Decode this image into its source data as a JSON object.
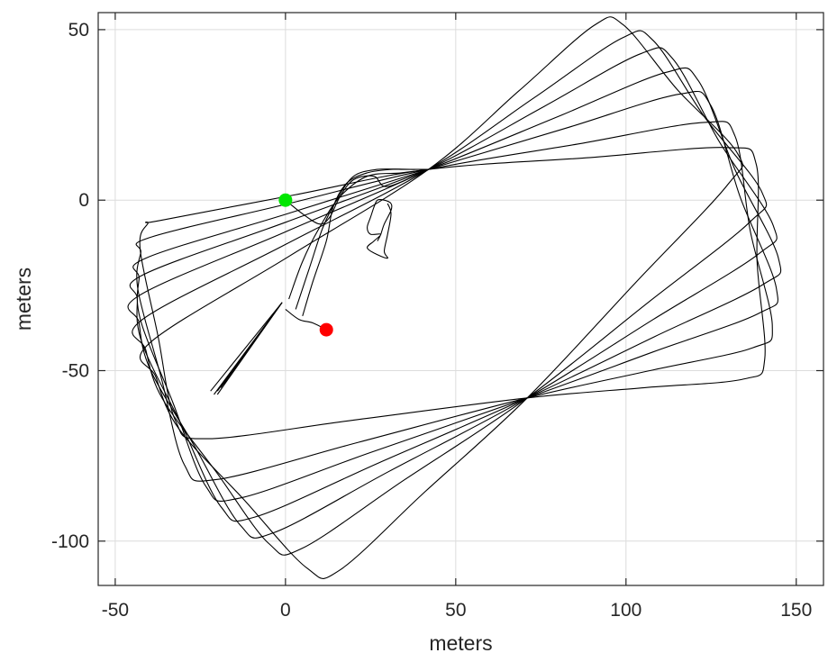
{
  "chart_data": {
    "type": "line",
    "title": "",
    "xlabel": "meters",
    "ylabel": "meters",
    "xlim": [
      -55,
      158
    ],
    "ylim": [
      -113,
      55
    ],
    "xticks": [
      -50,
      0,
      50,
      100,
      150
    ],
    "yticks": [
      50,
      0,
      -50,
      -100
    ],
    "xtick_labels": [
      "-50",
      "0",
      "50",
      "100",
      "150"
    ],
    "ytick_labels": [
      "50",
      "0",
      "-50",
      "-100"
    ],
    "grid": true,
    "line_color": "#000000",
    "pivots": {
      "top": [
        42,
        9
      ],
      "bottom": [
        71,
        -58
      ]
    },
    "loops": [
      {
        "start": [
          -37,
          -6
        ],
        "tr": [
          137,
          16
        ],
        "br": [
          140,
          -52
        ],
        "bl": [
          -31,
          -71
        ],
        "tl": [
          -44,
          -8
        ]
      },
      {
        "start": [
          -40,
          -11
        ],
        "tr": [
          130,
          24
        ],
        "br": [
          143,
          -42
        ],
        "bl": [
          -28,
          -84
        ],
        "tl": [
          -45,
          -20
        ]
      },
      {
        "start": [
          -41,
          -17
        ],
        "tr": [
          122,
          33
        ],
        "br": [
          145,
          -31
        ],
        "bl": [
          -21,
          -90
        ],
        "tl": [
          -45,
          -29
        ]
      },
      {
        "start": [
          -42,
          -22
        ],
        "tr": [
          118,
          40
        ],
        "br": [
          146,
          -22
        ],
        "bl": [
          -16,
          -96
        ],
        "tl": [
          -45,
          -36
        ]
      },
      {
        "start": [
          -43,
          -28
        ],
        "tr": [
          110,
          46
        ],
        "br": [
          145,
          -12
        ],
        "bl": [
          -10,
          -101
        ],
        "tl": [
          -43,
          -44
        ]
      },
      {
        "start": [
          -42,
          -35
        ],
        "tr": [
          104,
          51
        ],
        "br": [
          142,
          -2
        ],
        "bl": [
          -1,
          -106
        ],
        "tl": [
          -40,
          -53
        ]
      },
      {
        "start": [
          -40,
          -42
        ],
        "tr": [
          95,
          55
        ],
        "br": [
          135,
          10
        ],
        "bl": [
          11,
          -113
        ],
        "tl": [
          -36,
          -62
        ]
      }
    ],
    "fan_lines": {
      "apex": [
        -1,
        -30
      ],
      "ends": [
        [
          -22,
          -56
        ],
        [
          -21,
          -57
        ],
        [
          -20,
          -56
        ],
        [
          -19,
          -55
        ],
        [
          -18,
          -54
        ],
        [
          -20,
          -57
        ]
      ]
    },
    "central_segments": [
      {
        "name": "start-tail",
        "points": [
          [
            0,
            0
          ],
          [
            5,
            -4
          ],
          [
            10,
            -7
          ],
          [
            13,
            -5
          ],
          [
            16,
            1
          ],
          [
            20,
            6
          ],
          [
            26,
            7
          ],
          [
            30,
            4
          ],
          [
            42,
            9
          ]
        ]
      },
      {
        "name": "mid-arc-1",
        "points": [
          [
            1,
            -29
          ],
          [
            5,
            -18
          ],
          [
            10,
            -8
          ],
          [
            16,
            1
          ],
          [
            24,
            7
          ],
          [
            34,
            8
          ],
          [
            42,
            9
          ]
        ]
      },
      {
        "name": "mid-arc-2",
        "points": [
          [
            3,
            -32
          ],
          [
            7,
            -20
          ],
          [
            11,
            -8
          ],
          [
            15,
            0
          ],
          [
            20,
            7
          ],
          [
            27,
            9
          ],
          [
            35,
            9
          ],
          [
            42,
            9
          ]
        ]
      },
      {
        "name": "mid-arc-3",
        "points": [
          [
            5,
            -34
          ],
          [
            8,
            -24
          ],
          [
            12,
            -12
          ],
          [
            14,
            -2
          ],
          [
            18,
            5
          ],
          [
            24,
            8
          ],
          [
            31,
            9
          ],
          [
            38,
            9
          ]
        ]
      },
      {
        "name": "end-tail",
        "points": [
          [
            0,
            -32
          ],
          [
            4,
            -35
          ],
          [
            8,
            -36
          ],
          [
            12,
            -38
          ]
        ]
      }
    ],
    "small_loop": {
      "points": [
        [
          30,
          -1
        ],
        [
          31,
          -4
        ],
        [
          30,
          -10
        ],
        [
          29,
          -15
        ],
        [
          30,
          -17
        ],
        [
          27,
          -16
        ],
        [
          24,
          -14
        ],
        [
          26,
          -12
        ],
        [
          28,
          -10
        ],
        [
          25,
          -10
        ],
        [
          24,
          -8
        ],
        [
          25,
          -5
        ],
        [
          26,
          -2
        ],
        [
          27,
          0
        ],
        [
          29,
          0
        ],
        [
          31,
          -1
        ],
        [
          31,
          -3
        ],
        [
          29,
          -7
        ],
        [
          28,
          -10
        ],
        [
          27,
          -12
        ]
      ]
    },
    "markers": [
      {
        "name": "start",
        "x": 0,
        "y": 0,
        "color": "#00e600"
      },
      {
        "name": "end",
        "x": 12,
        "y": -38,
        "color": "#ff0000"
      }
    ]
  }
}
